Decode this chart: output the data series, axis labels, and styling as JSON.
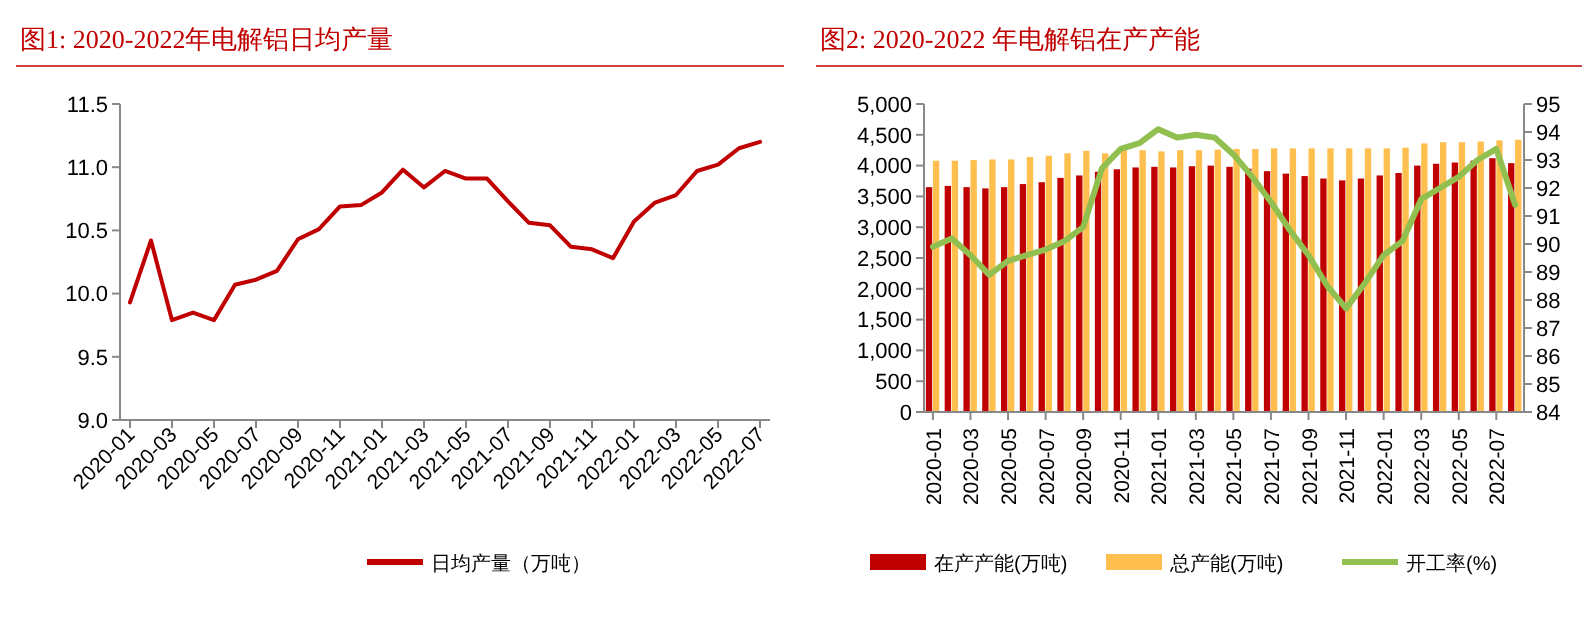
{
  "chart_data": [
    {
      "type": "line",
      "title": "图1: 2020-2022年电解铝日均产量",
      "categories": [
        "2020-01",
        null,
        "2020-03",
        null,
        "2020-05",
        null,
        "2020-07",
        null,
        "2020-09",
        null,
        "2020-11",
        null,
        "2021-01",
        null,
        "2021-03",
        null,
        "2021-05",
        null,
        "2021-07",
        null,
        "2021-09",
        null,
        "2021-11",
        null,
        "2022-01",
        null,
        "2022-03",
        null,
        "2022-05",
        null,
        "2022-07"
      ],
      "series": [
        {
          "name": "日均产量（万吨）",
          "color": "#c00000",
          "values": [
            9.93,
            10.42,
            9.79,
            9.85,
            9.79,
            10.07,
            10.11,
            10.18,
            10.43,
            10.51,
            10.69,
            10.7,
            10.8,
            10.98,
            10.84,
            10.97,
            10.91,
            10.91,
            10.73,
            10.56,
            10.54,
            10.37,
            10.35,
            10.28,
            10.57,
            10.72,
            10.78,
            10.97,
            11.02,
            11.15,
            11.2
          ]
        }
      ],
      "ylim": [
        9,
        11.5
      ],
      "yticks": [
        {
          "value": 9,
          "label": "9.0"
        },
        {
          "value": 9.5,
          "label": "9.5"
        },
        {
          "value": 10,
          "label": "10.0"
        },
        {
          "value": 10.5,
          "label": "10.5"
        },
        {
          "value": 11,
          "label": "11.0"
        },
        {
          "value": 11.5,
          "label": "11.5"
        }
      ],
      "legend": "bottom"
    },
    {
      "type": "bar",
      "title": "图2:    2020-2022 年电解铝在产产能",
      "categories": [
        "2020-01",
        null,
        "2020-03",
        null,
        "2020-05",
        null,
        "2020-07",
        null,
        "2020-09",
        null,
        "2020-11",
        null,
        "2021-01",
        null,
        "2021-03",
        null,
        "2021-05",
        null,
        "2021-07",
        null,
        "2021-09",
        null,
        "2021-11",
        null,
        "2022-01",
        null,
        "2022-03",
        null,
        "2022-05",
        null,
        "2022-07",
        null
      ],
      "series": [
        {
          "name": "在产产能(万吨)",
          "color": "#c00000",
          "values": [
            3650,
            3670,
            3650,
            3630,
            3650,
            3700,
            3730,
            3800,
            3840,
            3900,
            3940,
            3970,
            3980,
            3970,
            3990,
            4000,
            3980,
            3950,
            3910,
            3870,
            3830,
            3790,
            3760,
            3790,
            3840,
            3880,
            4000,
            4030,
            4050,
            4080,
            4120,
            4040
          ]
        },
        {
          "name": "总产能(万吨)",
          "color": "#ffbf4f",
          "values": [
            4080,
            4080,
            4090,
            4100,
            4100,
            4140,
            4160,
            4200,
            4240,
            4200,
            4260,
            4250,
            4230,
            4250,
            4250,
            4260,
            4270,
            4270,
            4280,
            4280,
            4280,
            4280,
            4280,
            4280,
            4280,
            4290,
            4360,
            4380,
            4380,
            4390,
            4410,
            4420
          ]
        },
        {
          "name": "开工率(%)",
          "type": "line",
          "axis": "y2",
          "color": "#92c050",
          "values": [
            89.9,
            90.2,
            89.6,
            88.9,
            89.4,
            89.6,
            89.8,
            90.1,
            90.6,
            92.7,
            93.4,
            93.6,
            94.1,
            93.8,
            93.9,
            93.8,
            93.2,
            92.4,
            91.5,
            90.5,
            89.6,
            88.5,
            87.7,
            88.6,
            89.6,
            90.1,
            91.6,
            92.0,
            92.4,
            93.0,
            93.4,
            91.4
          ]
        }
      ],
      "ylim": [
        0,
        5000
      ],
      "yticks": [
        0,
        {
          "value": 500,
          "label": "500"
        },
        {
          "value": 1000,
          "label": "1,000"
        },
        {
          "value": 1500,
          "label": "1,500"
        },
        {
          "value": 2000,
          "label": "2,000"
        },
        {
          "value": 2500,
          "label": "2,500"
        },
        {
          "value": 3000,
          "label": "3,000"
        },
        {
          "value": 3500,
          "label": "3,500"
        },
        {
          "value": 4000,
          "label": "4,000"
        },
        {
          "value": 4500,
          "label": "4,500"
        },
        {
          "value": 5000,
          "label": "5,000"
        }
      ],
      "y2lim": [
        84,
        95
      ],
      "y2ticks": [
        84,
        85,
        86,
        87,
        88,
        89,
        90,
        91,
        92,
        93,
        94,
        95
      ],
      "legend": "bottom"
    }
  ]
}
